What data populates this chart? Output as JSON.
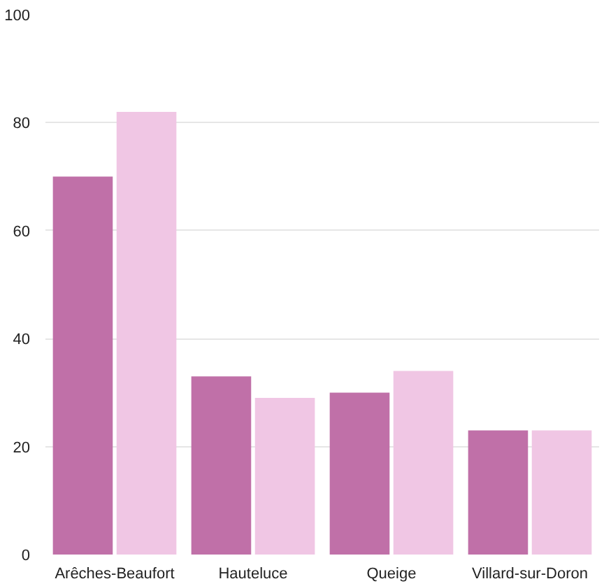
{
  "chart_data": {
    "type": "bar",
    "categories": [
      "Arêches-Beaufort",
      "Hauteluce",
      "Queige",
      "Villard-sur-Doron"
    ],
    "series": [
      {
        "color": "#c070a8",
        "values": [
          70,
          33,
          30,
          23
        ]
      },
      {
        "color": "#f0c6e4",
        "values": [
          82,
          29,
          34,
          23
        ]
      }
    ],
    "ylim": [
      0,
      100
    ],
    "yticks": [
      0,
      20,
      40,
      60,
      80,
      100
    ],
    "grid": "y"
  }
}
